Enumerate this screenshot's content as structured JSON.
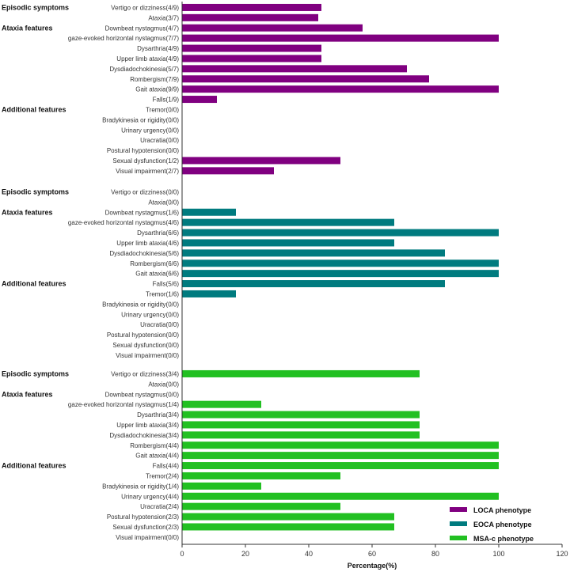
{
  "chart_data": {
    "type": "bar",
    "orientation": "horizontal",
    "xlabel": "Percentage(%)",
    "xlim": [
      0,
      120
    ],
    "xticks": [
      0,
      20,
      40,
      60,
      80,
      100,
      120
    ],
    "grid": false,
    "legend_position": "bottom-right",
    "groups": [
      {
        "name": "LOCA phenotype",
        "color": "#800080",
        "sections": [
          {
            "label": "Episodic symptoms",
            "start_index": 0
          },
          {
            "label": "Ataxia features",
            "start_index": 2
          },
          {
            "label": "Additional  features",
            "start_index": 10
          }
        ],
        "categories": [
          "Vertigo or dizziness(4/9)",
          "Ataxia(3/7)",
          "Downbeat nystagmus(4/7)",
          "gaze-evoked horizontal nystagmus(7/7)",
          "Dysarthria(4/9)",
          "Upper limb ataxia(4/9)",
          "Dysdiadochokinesia(5/7)",
          "Rombergism(7/9)",
          "Gait ataxia(9/9)",
          "Falls(1/9)",
          "Tremor(0/0)",
          "Bradykinesia or rigidity(0/0)",
          "Urinary urgency(0/0)",
          "Uracratia(0/0)",
          "Postural hypotension(0/0)",
          "Sexual dysfunction(1/2)",
          "Visual impairment(2/7)"
        ],
        "values": [
          44,
          43,
          57,
          100,
          44,
          44,
          71,
          78,
          100,
          11,
          0,
          0,
          0,
          0,
          0,
          50,
          29
        ]
      },
      {
        "name": "EOCA phenotype",
        "color": "#007b7f",
        "sections": [
          {
            "label": "Episodic symptoms",
            "start_index": 0
          },
          {
            "label": "Ataxia features",
            "start_index": 2
          },
          {
            "label": "Additional features",
            "start_index": 9
          }
        ],
        "categories": [
          "Vertigo or dizziness(0/0)",
          "Ataxia(0/0)",
          "Downbeat nystagmus(1/6)",
          "gaze-evoked horizontal nystagmus(4/6)",
          "Dysarthria(6/6)",
          "Upper limb ataxia(4/6)",
          "Dysdiadochokinesia(5/6)",
          "Rombergism(6/6)",
          "Gait ataxia(6/6)",
          "Falls(5/6)",
          "Tremor(1/6)",
          "Bradykinesia or rigidity(0/0)",
          "Urinary urgency(0/0)",
          "Uracratia(0/0)",
          "Postural hypotension(0/0)",
          "Sexual dysfunction(0/0)",
          "Visual impairment(0/0)"
        ],
        "values": [
          0,
          0,
          17,
          67,
          100,
          67,
          83,
          100,
          100,
          83,
          17,
          0,
          0,
          0,
          0,
          0,
          0
        ]
      },
      {
        "name": "MSA-c phenotype",
        "color": "#22c022",
        "sections": [
          {
            "label": "Episodic symptoms",
            "start_index": 0
          },
          {
            "label": "Ataxia features",
            "start_index": 2
          },
          {
            "label": "Additional features",
            "start_index": 9
          }
        ],
        "categories": [
          "Vertigo or dizziness(3/4)",
          "Ataxia(0/0)",
          "Downbeat nystagmus(0/0)",
          "gaze-evoked horizontal nystagmus(1/4)",
          "Dysarthria(3/4)",
          "Upper limb ataxia(3/4)",
          "Dysdiadochokinesia(3/4)",
          "Rombergism(4/4)",
          "Gait ataxia(4/4)",
          "Falls(4/4)",
          "Tremor(2/4)",
          "Bradykinesia or rigidity(1/4)",
          "Urinary urgency(4/4)",
          "Uracratia(2/4)",
          "Postural hypotension(2/3)",
          "Sexual dysfunction(2/3)",
          "Visual impairment(0/0)"
        ],
        "values": [
          75,
          0,
          0,
          25,
          75,
          75,
          75,
          100,
          100,
          100,
          50,
          25,
          100,
          50,
          67,
          67,
          0
        ]
      }
    ]
  }
}
